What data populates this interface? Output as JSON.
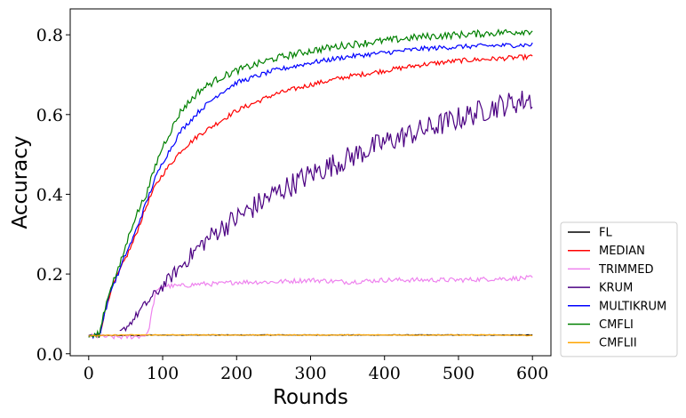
{
  "chart_data": {
    "type": "line",
    "title": "",
    "xlabel": "Rounds",
    "ylabel": "Accuracy",
    "xlim": [
      -25,
      625
    ],
    "ylim": [
      -0.005,
      0.865
    ],
    "x_ticks": [
      0,
      100,
      200,
      300,
      400,
      500,
      600
    ],
    "y_ticks": [
      0.0,
      0.2,
      0.4,
      0.6,
      0.8
    ],
    "x_tick_labels": [
      "0",
      "100",
      "200",
      "300",
      "400",
      "500",
      "600"
    ],
    "y_tick_labels": [
      "0.0",
      "0.2",
      "0.4",
      "0.6",
      "0.8"
    ],
    "grid": false,
    "legend_position": "outside lower right",
    "x": [
      0,
      10,
      15,
      20,
      30,
      40,
      50,
      60,
      70,
      80,
      90,
      100,
      125,
      150,
      175,
      200,
      250,
      300,
      350,
      400,
      450,
      500,
      550,
      600
    ],
    "series": [
      {
        "name": "FL",
        "color": "#000000",
        "values": [
          0.045,
          0.045,
          0.046,
          0.046,
          0.046,
          0.046,
          0.046,
          0.046,
          0.046,
          0.047,
          0.047,
          0.047,
          0.047,
          0.047,
          0.047,
          0.047,
          0.047,
          0.047,
          0.047,
          0.047,
          0.047,
          0.047,
          0.047,
          0.047
        ]
      },
      {
        "name": "MEDIAN",
        "color": "#ff0000",
        "values": [
          0.045,
          0.045,
          0.05,
          0.09,
          0.16,
          0.2,
          0.24,
          0.28,
          0.33,
          0.38,
          0.42,
          0.45,
          0.51,
          0.55,
          0.58,
          0.61,
          0.65,
          0.675,
          0.695,
          0.71,
          0.725,
          0.735,
          0.74,
          0.745
        ]
      },
      {
        "name": "TRIMMED",
        "color": "#ee82ee",
        "values": [
          0.045,
          0.044,
          0.043,
          0.043,
          0.042,
          0.042,
          0.042,
          0.043,
          0.044,
          0.05,
          0.15,
          0.17,
          0.17,
          0.175,
          0.175,
          0.18,
          0.18,
          0.185,
          0.18,
          0.185,
          0.185,
          0.185,
          0.188,
          0.19
        ]
      },
      {
        "name": "KRUM",
        "color": "#4b0082",
        "values": [
          null,
          null,
          null,
          null,
          null,
          0.05,
          0.065,
          0.085,
          0.11,
          0.13,
          0.15,
          0.17,
          0.22,
          0.27,
          0.31,
          0.34,
          0.4,
          0.45,
          0.49,
          0.53,
          0.56,
          0.59,
          0.62,
          0.64
        ]
      },
      {
        "name": "MULTIKRUM",
        "color": "#0000ff",
        "values": [
          0.045,
          0.045,
          0.05,
          0.09,
          0.16,
          0.2,
          0.25,
          0.29,
          0.34,
          0.39,
          0.44,
          0.48,
          0.56,
          0.61,
          0.65,
          0.68,
          0.71,
          0.73,
          0.745,
          0.755,
          0.765,
          0.77,
          0.773,
          0.775
        ]
      },
      {
        "name": "CMFLI",
        "color": "#008000",
        "values": [
          0.045,
          0.045,
          0.05,
          0.1,
          0.17,
          0.21,
          0.27,
          0.33,
          0.37,
          0.41,
          0.47,
          0.52,
          0.61,
          0.66,
          0.69,
          0.71,
          0.74,
          0.76,
          0.775,
          0.785,
          0.795,
          0.8,
          0.805,
          0.81
        ]
      },
      {
        "name": "CMFLII",
        "color": "#ffa500",
        "values": [
          0.045,
          0.045,
          0.046,
          0.046,
          0.046,
          0.047,
          0.047,
          0.047,
          0.047,
          0.047,
          0.047,
          0.047,
          0.047,
          0.047,
          0.047,
          0.047,
          0.047,
          0.047,
          0.047,
          0.047,
          0.047,
          0.047,
          0.047,
          0.046
        ]
      }
    ]
  }
}
